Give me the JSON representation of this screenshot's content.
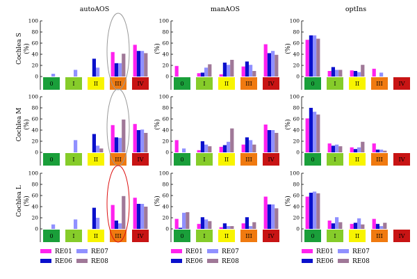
{
  "colors": {
    "RE01": "#ff22ee",
    "RE06": "#0a10cc",
    "RE07": "#9090ff",
    "RE08": "#a07898",
    "grade_0": "#1a9f3a",
    "grade_I": "#86cc2a",
    "grade_II": "#f8f400",
    "grade_III": "#f07a10",
    "grade_IV": "#c81414",
    "highlight_gray": "#999999",
    "highlight_red": "#dd1111"
  },
  "legend": [
    {
      "series": "RE01"
    },
    {
      "series": "RE07"
    },
    {
      "series": "RE06"
    },
    {
      "series": "RE08"
    }
  ],
  "chart_data": [
    {
      "type": "bar",
      "title": "autoAOS",
      "ylabel": "Cochlea S (%)",
      "categories": [
        "0",
        "I",
        "II",
        "III",
        "IV"
      ],
      "ylim": [
        0,
        100
      ],
      "yticks": [
        0,
        20,
        40,
        60,
        80,
        100
      ],
      "highlight": {
        "category": "III",
        "style": "gray-ellipse"
      },
      "series": [
        {
          "name": "RE01",
          "values": [
            0,
            0,
            0,
            44,
            57
          ]
        },
        {
          "name": "RE06",
          "values": [
            0,
            0,
            32,
            24,
            46
          ]
        },
        {
          "name": "RE07",
          "values": [
            5,
            12,
            16,
            24,
            46
          ]
        },
        {
          "name": "RE08",
          "values": [
            0,
            0,
            0,
            41,
            42
          ]
        }
      ]
    },
    {
      "type": "bar",
      "title": "manAOS",
      "ylabel": "Cochlea S (%)",
      "categories": [
        "0",
        "I",
        "II",
        "III",
        "IV"
      ],
      "ylim": [
        0,
        100
      ],
      "yticks": [
        0,
        20,
        40,
        60,
        80,
        100
      ],
      "series": [
        {
          "name": "RE01",
          "values": [
            19,
            6,
            4,
            18,
            58
          ]
        },
        {
          "name": "RE06",
          "values": [
            0,
            7,
            25,
            27,
            42
          ]
        },
        {
          "name": "RE07",
          "values": [
            0,
            16,
            21,
            21,
            46
          ]
        },
        {
          "name": "RE08",
          "values": [
            0,
            22,
            30,
            10,
            39
          ]
        }
      ]
    },
    {
      "type": "bar",
      "title": "optIns",
      "ylabel": "Cochlea S (%)",
      "categories": [
        "0",
        "I",
        "II",
        "III",
        "IV"
      ],
      "ylim": [
        0,
        100
      ],
      "yticks": [
        0,
        20,
        40,
        60,
        80,
        100
      ],
      "series": [
        {
          "name": "RE01",
          "values": [
            66,
            10,
            11,
            14,
            0
          ]
        },
        {
          "name": "RE06",
          "values": [
            74,
            17,
            10,
            0,
            0
          ]
        },
        {
          "name": "RE07",
          "values": [
            74,
            12,
            8,
            7,
            0
          ]
        },
        {
          "name": "RE08",
          "values": [
            68,
            12,
            21,
            0,
            0
          ]
        }
      ]
    },
    {
      "type": "bar",
      "title": "",
      "ylabel": "Cochlea M (%)",
      "categories": [
        "0",
        "I",
        "II",
        "III",
        "IV"
      ],
      "ylim": [
        0,
        100
      ],
      "yticks": [
        0,
        20,
        40,
        60,
        80,
        100
      ],
      "highlight": {
        "category": "III",
        "style": "gray-ellipse"
      },
      "series": [
        {
          "name": "RE01",
          "values": [
            0,
            0,
            0,
            49,
            51
          ]
        },
        {
          "name": "RE06",
          "values": [
            0,
            0,
            33,
            27,
            40
          ]
        },
        {
          "name": "RE07",
          "values": [
            0,
            22,
            12,
            26,
            41
          ]
        },
        {
          "name": "RE08",
          "values": [
            0,
            0,
            7,
            59,
            35
          ]
        }
      ]
    },
    {
      "type": "bar",
      "title": "",
      "ylabel": "Cochlea M (%)",
      "categories": [
        "0",
        "I",
        "II",
        "III",
        "IV"
      ],
      "ylim": [
        0,
        100
      ],
      "yticks": [
        0,
        20,
        40,
        60,
        80,
        100
      ],
      "series": [
        {
          "name": "RE01",
          "values": [
            22,
            4,
            10,
            14,
            50
          ]
        },
        {
          "name": "RE06",
          "values": [
            0,
            20,
            13,
            27,
            40
          ]
        },
        {
          "name": "RE07",
          "values": [
            7,
            14,
            19,
            22,
            40
          ]
        },
        {
          "name": "RE08",
          "values": [
            0,
            11,
            43,
            14,
            35
          ]
        }
      ]
    },
    {
      "type": "bar",
      "title": "",
      "ylabel": "Cochlea M (%)",
      "categories": [
        "0",
        "I",
        "II",
        "III",
        "IV"
      ],
      "ylim": [
        0,
        100
      ],
      "yticks": [
        0,
        20,
        40,
        60,
        80,
        100
      ],
      "series": [
        {
          "name": "RE01",
          "values": [
            61,
            16,
            9,
            16,
            0
          ]
        },
        {
          "name": "RE06",
          "values": [
            80,
            12,
            6,
            5,
            0
          ]
        },
        {
          "name": "RE07",
          "values": [
            73,
            14,
            9,
            5,
            0
          ]
        },
        {
          "name": "RE08",
          "values": [
            68,
            11,
            19,
            3,
            0
          ]
        }
      ]
    },
    {
      "type": "bar",
      "title": "",
      "ylabel": "Cochlea L (%)",
      "categories": [
        "0",
        "I",
        "II",
        "III",
        "IV"
      ],
      "ylim": [
        0,
        100
      ],
      "yticks": [
        0,
        20,
        40,
        60,
        80,
        100
      ],
      "highlight": {
        "category": "III",
        "style": "red-ellipse"
      },
      "series": [
        {
          "name": "RE01",
          "values": [
            0,
            0,
            0,
            43,
            56
          ]
        },
        {
          "name": "RE06",
          "values": [
            0,
            0,
            38,
            15,
            45
          ]
        },
        {
          "name": "RE07",
          "values": [
            8,
            17,
            20,
            10,
            45
          ]
        },
        {
          "name": "RE08",
          "values": [
            0,
            0,
            0,
            59,
            40
          ]
        }
      ]
    },
    {
      "type": "bar",
      "title": "",
      "ylabel": "Cochlea L (%)",
      "categories": [
        "0",
        "I",
        "II",
        "III",
        "IV"
      ],
      "ylim": [
        0,
        100
      ],
      "yticks": [
        0,
        20,
        40,
        60,
        80,
        100
      ],
      "series": [
        {
          "name": "RE01",
          "values": [
            18,
            9,
            3,
            10,
            58
          ]
        },
        {
          "name": "RE06",
          "values": [
            2,
            21,
            10,
            21,
            44
          ]
        },
        {
          "name": "RE07",
          "values": [
            29,
            17,
            5,
            5,
            44
          ]
        },
        {
          "name": "RE08",
          "values": [
            30,
            14,
            5,
            12,
            37
          ]
        }
      ]
    },
    {
      "type": "bar",
      "title": "",
      "ylabel": "Cochlea L (%)",
      "categories": [
        "0",
        "I",
        "II",
        "III",
        "IV"
      ],
      "ylim": [
        0,
        100
      ],
      "yticks": [
        0,
        20,
        40,
        60,
        80,
        100
      ],
      "series": [
        {
          "name": "RE01",
          "values": [
            58,
            15,
            9,
            18,
            0
          ]
        },
        {
          "name": "RE06",
          "values": [
            65,
            10,
            11,
            9,
            0
          ]
        },
        {
          "name": "RE07",
          "values": [
            67,
            21,
            19,
            5,
            0
          ]
        },
        {
          "name": "RE08",
          "values": [
            64,
            12,
            8,
            11,
            0
          ]
        }
      ]
    }
  ]
}
